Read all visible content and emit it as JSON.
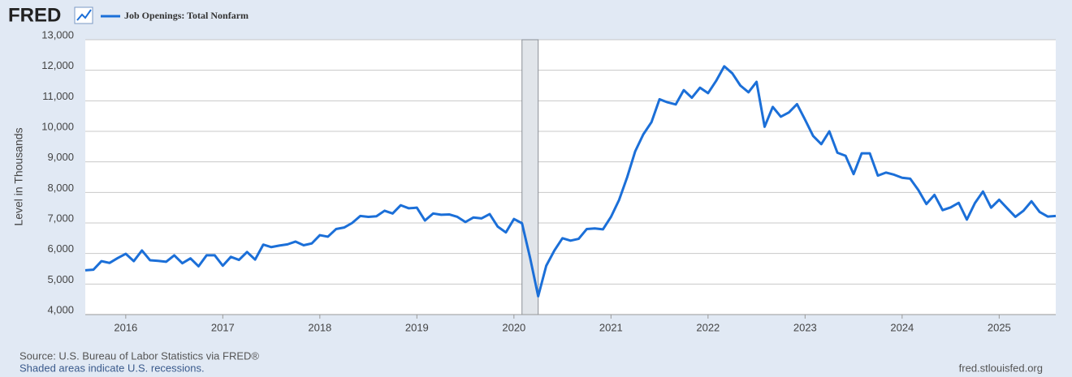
{
  "brand": "FRED",
  "chart_data": {
    "type": "line",
    "y_axis_label": "Level in Thousands",
    "source": "Source: U.S. Bureau of Labor Statistics via FRED®",
    "note": "Shaded areas indicate U.S. recessions.",
    "site": "fred.stlouisfed.org",
    "xlim": [
      2015.583,
      2025.583
    ],
    "xticks": [
      2016,
      2017,
      2018,
      2019,
      2020,
      2021,
      2022,
      2023,
      2024,
      2025
    ],
    "ylim": [
      4000,
      13000
    ],
    "yticks": [
      {
        "value": 4000,
        "label": "4,000"
      },
      {
        "value": 5000,
        "label": "5,000"
      },
      {
        "value": 6000,
        "label": "6,000"
      },
      {
        "value": 7000,
        "label": "7,000"
      },
      {
        "value": 8000,
        "label": "8,000"
      },
      {
        "value": 9000,
        "label": "9,000"
      },
      {
        "value": 10000,
        "label": "10,000"
      },
      {
        "value": 11000,
        "label": "11,000"
      },
      {
        "value": 12000,
        "label": "12,000"
      },
      {
        "value": 13000,
        "label": "13,000"
      }
    ],
    "grid": true,
    "recessions": [
      [
        2020.083,
        2020.25
      ]
    ],
    "x": [
      2015.583,
      2015.667,
      2015.75,
      2015.833,
      2015.917,
      2016,
      2016.083,
      2016.167,
      2016.25,
      2016.333,
      2016.417,
      2016.5,
      2016.583,
      2016.667,
      2016.75,
      2016.833,
      2016.917,
      2017,
      2017.083,
      2017.167,
      2017.25,
      2017.333,
      2017.417,
      2017.5,
      2017.583,
      2017.667,
      2017.75,
      2017.833,
      2017.917,
      2018,
      2018.083,
      2018.167,
      2018.25,
      2018.333,
      2018.417,
      2018.5,
      2018.583,
      2018.667,
      2018.75,
      2018.833,
      2018.917,
      2019,
      2019.083,
      2019.167,
      2019.25,
      2019.333,
      2019.417,
      2019.5,
      2019.583,
      2019.667,
      2019.75,
      2019.833,
      2019.917,
      2020,
      2020.083,
      2020.167,
      2020.25,
      2020.333,
      2020.417,
      2020.5,
      2020.583,
      2020.667,
      2020.75,
      2020.833,
      2020.917,
      2021,
      2021.083,
      2021.167,
      2021.25,
      2021.333,
      2021.417,
      2021.5,
      2021.583,
      2021.667,
      2021.75,
      2021.833,
      2021.917,
      2022,
      2022.083,
      2022.167,
      2022.25,
      2022.333,
      2022.417,
      2022.5,
      2022.583,
      2022.667,
      2022.75,
      2022.833,
      2022.917,
      2023,
      2023.083,
      2023.167,
      2023.25,
      2023.333,
      2023.417,
      2023.5,
      2023.583,
      2023.667,
      2023.75,
      2023.833,
      2023.917,
      2024,
      2024.083,
      2024.167,
      2024.25,
      2024.333,
      2024.417,
      2024.5,
      2024.583,
      2024.667,
      2024.75,
      2024.833,
      2024.917,
      2025,
      2025.083,
      2025.167,
      2025.25,
      2025.333,
      2025.417,
      2025.5,
      2025.583
    ],
    "series": [
      {
        "name": "Job Openings: Total Nonfarm",
        "color": "#1b6fd8",
        "values": [
          5450,
          5470,
          5750,
          5690,
          5850,
          5990,
          5750,
          6100,
          5780,
          5760,
          5730,
          5940,
          5680,
          5840,
          5580,
          5940,
          5940,
          5600,
          5890,
          5790,
          6050,
          5800,
          6290,
          6210,
          6260,
          6300,
          6390,
          6270,
          6330,
          6600,
          6550,
          6800,
          6850,
          7000,
          7230,
          7200,
          7220,
          7400,
          7310,
          7580,
          7480,
          7500,
          7080,
          7310,
          7270,
          7280,
          7200,
          7030,
          7180,
          7150,
          7290,
          6880,
          6690,
          7130,
          6990,
          5850,
          4600,
          5600,
          6100,
          6500,
          6420,
          6480,
          6800,
          6820,
          6790,
          7200,
          7750,
          8500,
          9350,
          9900,
          10300,
          11050,
          10950,
          10880,
          11350,
          11100,
          11430,
          11250,
          11650,
          12130,
          11900,
          11500,
          11280,
          11620,
          10150,
          10800,
          10480,
          10620,
          10890,
          10380,
          9850,
          9580,
          10000,
          9300,
          9200,
          8600,
          9280,
          9280,
          8550,
          8650,
          8580,
          8480,
          8450,
          8080,
          7620,
          7920,
          7420,
          7510,
          7660,
          7110,
          7650,
          8030,
          7500,
          7760,
          7480,
          7200,
          7400,
          7710,
          7360,
          7210,
          7230
        ]
      }
    ]
  }
}
